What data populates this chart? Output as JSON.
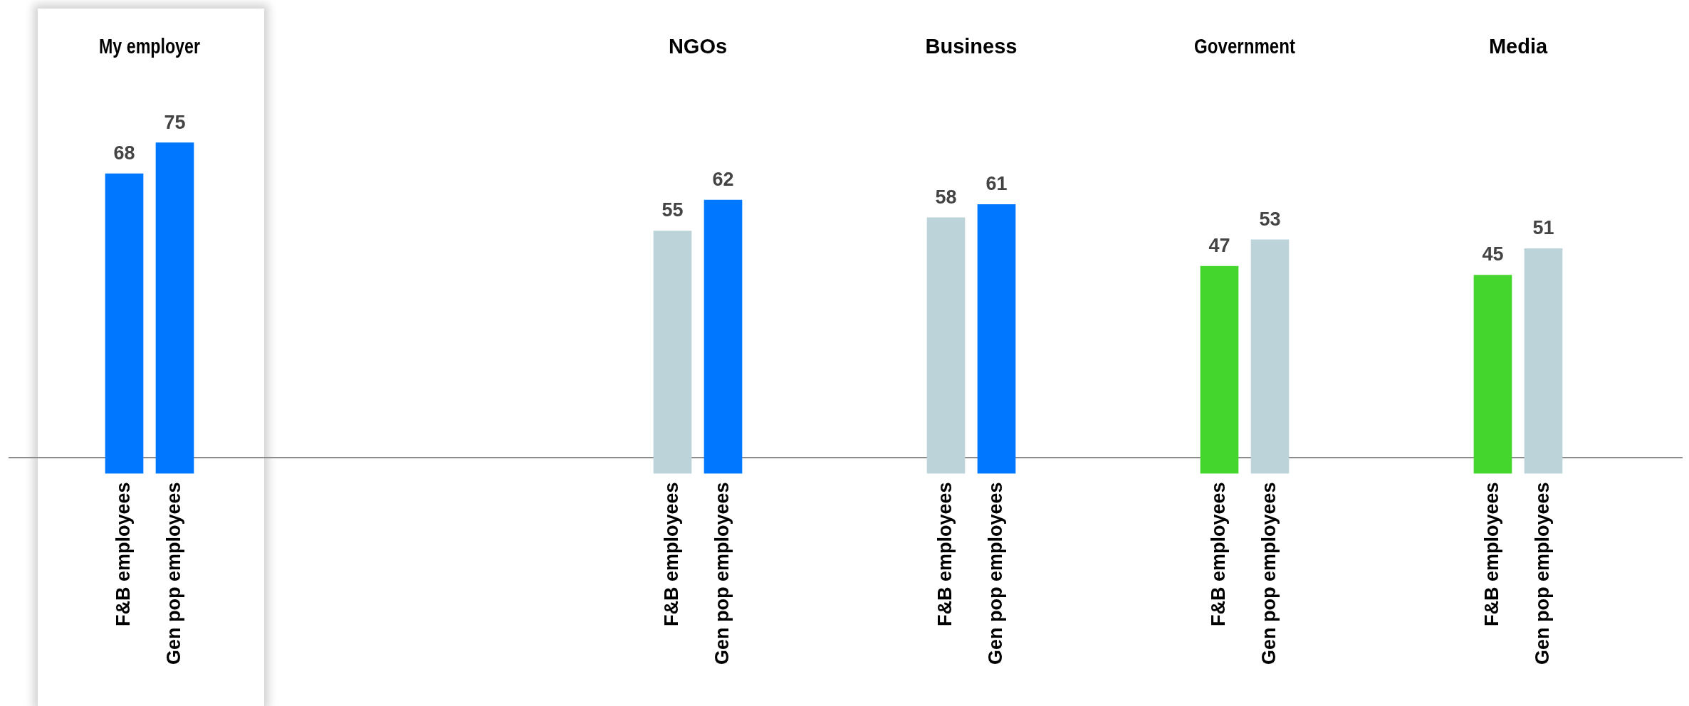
{
  "chart_data": [
    {
      "type": "bar",
      "title": "My employer",
      "categories": [
        "F&B employees",
        "Gen pop employees"
      ],
      "values": [
        68,
        75
      ],
      "colors": [
        "#0077ff",
        "#0077ff"
      ],
      "data_labels": true
    },
    {
      "type": "bar",
      "title": "NGOs",
      "categories": [
        "F&B employees",
        "Gen pop employees"
      ],
      "values": [
        55,
        62
      ],
      "colors": [
        "#bdd3da",
        "#0077ff"
      ],
      "data_labels": true
    },
    {
      "type": "bar",
      "title": "Business",
      "categories": [
        "F&B employees",
        "Gen pop employees"
      ],
      "values": [
        58,
        61
      ],
      "colors": [
        "#bdd3da",
        "#0077ff"
      ],
      "data_labels": true
    },
    {
      "type": "bar",
      "title": "Government",
      "categories": [
        "F&B employees",
        "Gen pop employees"
      ],
      "values": [
        47,
        53
      ],
      "colors": [
        "#44d62c",
        "#bdd3da"
      ],
      "data_labels": true
    },
    {
      "type": "bar",
      "title": "Media",
      "categories": [
        "F&B employees",
        "Gen pop employees"
      ],
      "values": [
        45,
        51
      ],
      "colors": [
        "#44d62c",
        "#bdd3da"
      ],
      "data_labels": true
    }
  ]
}
